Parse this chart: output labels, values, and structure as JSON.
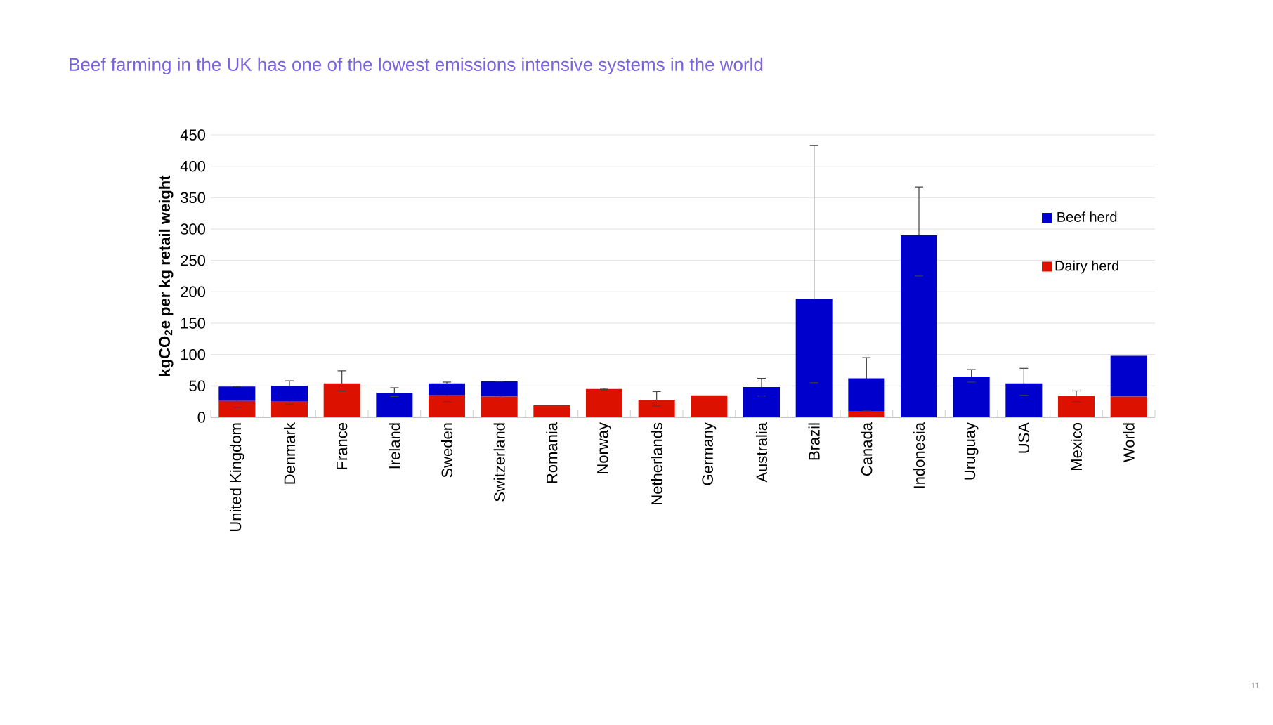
{
  "chart_data": {
    "type": "bar",
    "stacked": true,
    "title": "Beef farming in the UK has one of the lowest emissions intensive systems in the world",
    "ylabel": "kgCO$_{2}$e per kg retail weight",
    "categories": [
      "United Kingdom",
      "Denmark",
      "France",
      "Ireland",
      "Sweden",
      "Switzerland",
      "Romania",
      "Norway",
      "Netherlands",
      "Germany",
      "Australia",
      "Brazil",
      "Canada",
      "Indonesia",
      "Uruguay",
      "USA",
      "Mexico",
      "World"
    ],
    "series": [
      {
        "name": "Dairy herd",
        "color": "#dd1100",
        "values": [
          26,
          25,
          54,
          0,
          35,
          33,
          19,
          45,
          28,
          35,
          0,
          0,
          10,
          0,
          0,
          0,
          34,
          33
        ],
        "errors": [
          null,
          null,
          [
            42,
            74
          ],
          null,
          null,
          null,
          null,
          [
            44,
            46
          ],
          [
            18,
            41
          ],
          null,
          null,
          null,
          null,
          null,
          null,
          null,
          [
            25,
            42
          ],
          null
        ]
      },
      {
        "name": "Beef herd",
        "color": "#0000cc",
        "values": [
          23,
          25,
          0,
          39,
          19,
          24,
          0,
          0,
          0,
          0,
          48,
          189,
          52,
          290,
          65,
          54,
          0,
          65
        ],
        "errors": [
          [
            16,
            49
          ],
          [
            21,
            58
          ],
          null,
          [
            33,
            47
          ],
          [
            25,
            56
          ],
          [
            34,
            57
          ],
          null,
          null,
          null,
          null,
          [
            34,
            62
          ],
          [
            55,
            433
          ],
          [
            10,
            95
          ],
          [
            225,
            367
          ],
          [
            56,
            76
          ],
          [
            35,
            78
          ],
          null,
          null
        ]
      }
    ],
    "ylim": [
      0,
      450
    ],
    "yticks": [
      0,
      50,
      100,
      150,
      200,
      250,
      300,
      350,
      400,
      450
    ],
    "grid": "y",
    "legend": "right",
    "annotations": [
      "11"
    ]
  }
}
